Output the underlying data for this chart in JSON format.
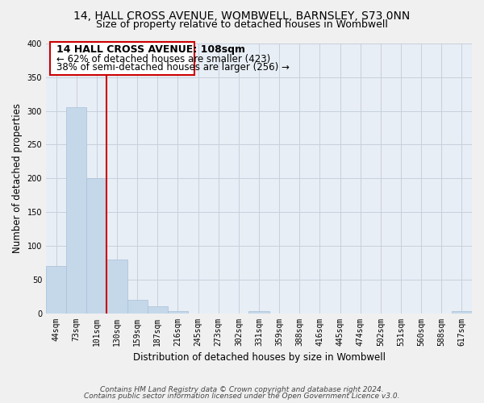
{
  "title": "14, HALL CROSS AVENUE, WOMBWELL, BARNSLEY, S73 0NN",
  "subtitle": "Size of property relative to detached houses in Wombwell",
  "xlabel": "Distribution of detached houses by size in Wombwell",
  "ylabel": "Number of detached properties",
  "categories": [
    "44sqm",
    "73sqm",
    "101sqm",
    "130sqm",
    "159sqm",
    "187sqm",
    "216sqm",
    "245sqm",
    "273sqm",
    "302sqm",
    "331sqm",
    "359sqm",
    "388sqm",
    "416sqm",
    "445sqm",
    "474sqm",
    "502sqm",
    "531sqm",
    "560sqm",
    "588sqm",
    "617sqm"
  ],
  "values": [
    70,
    305,
    200,
    80,
    20,
    10,
    3,
    0,
    0,
    0,
    3,
    0,
    0,
    0,
    0,
    0,
    0,
    0,
    0,
    0,
    3
  ],
  "bar_color": "#c5d8ea",
  "bar_edge_color": "#a8c0d8",
  "vline_color": "#cc0000",
  "annotation_title": "14 HALL CROSS AVENUE: 108sqm",
  "annotation_line1": "← 62% of detached houses are smaller (423)",
  "annotation_line2": "38% of semi-detached houses are larger (256) →",
  "annotation_box_color": "#ffffff",
  "annotation_box_edge": "#cc0000",
  "ylim": [
    0,
    400
  ],
  "yticks": [
    0,
    50,
    100,
    150,
    200,
    250,
    300,
    350,
    400
  ],
  "footnote1": "Contains HM Land Registry data © Crown copyright and database right 2024.",
  "footnote2": "Contains public sector information licensed under the Open Government Licence v3.0.",
  "bg_color": "#f0f0f0",
  "plot_bg_color": "#e8eef5",
  "grid_color": "#c8d0dc",
  "title_fontsize": 10,
  "subtitle_fontsize": 9,
  "axis_label_fontsize": 8.5,
  "tick_fontsize": 7,
  "annotation_title_fontsize": 9,
  "annotation_text_fontsize": 8.5,
  "footnote_fontsize": 6.5
}
